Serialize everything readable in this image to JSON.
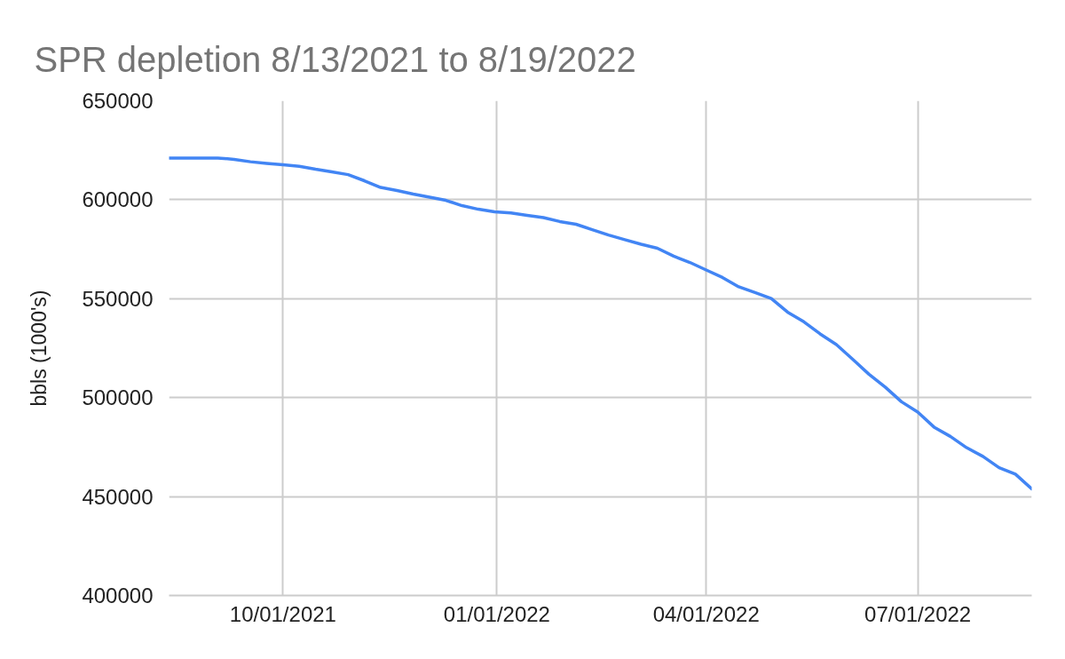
{
  "chart_data": {
    "type": "line",
    "title": "SPR depletion 8/13/2021 to 8/19/2022",
    "ylabel": "bbls (1000's)",
    "x": [
      "2021-08-13",
      "2021-08-20",
      "2021-08-27",
      "2021-09-03",
      "2021-09-10",
      "2021-09-17",
      "2021-09-24",
      "2021-10-01",
      "2021-10-08",
      "2021-10-15",
      "2021-10-22",
      "2021-10-29",
      "2021-11-05",
      "2021-11-12",
      "2021-11-19",
      "2021-11-26",
      "2021-12-03",
      "2021-12-10",
      "2021-12-17",
      "2021-12-24",
      "2021-12-31",
      "2022-01-07",
      "2022-01-14",
      "2022-01-21",
      "2022-01-28",
      "2022-02-04",
      "2022-02-11",
      "2022-02-18",
      "2022-02-25",
      "2022-03-04",
      "2022-03-11",
      "2022-03-18",
      "2022-03-25",
      "2022-04-01",
      "2022-04-08",
      "2022-04-15",
      "2022-04-22",
      "2022-04-29",
      "2022-05-06",
      "2022-05-13",
      "2022-05-20",
      "2022-05-27",
      "2022-06-03",
      "2022-06-10",
      "2022-06-17",
      "2022-06-24",
      "2022-07-01",
      "2022-07-08",
      "2022-07-15",
      "2022-07-22",
      "2022-07-29",
      "2022-08-05",
      "2022-08-12",
      "2022-08-19"
    ],
    "series": [
      {
        "color": "#4285f4",
        "values": [
          621100,
          621100,
          621100,
          621100,
          620400,
          619200,
          618400,
          617700,
          616900,
          615400,
          614100,
          612700,
          609600,
          606200,
          604700,
          602900,
          601300,
          599700,
          597000,
          595200,
          593900,
          593300,
          592100,
          591000,
          589000,
          587600,
          584900,
          582200,
          579800,
          577500,
          575500,
          571500,
          568300,
          564500,
          560700,
          556000,
          553100,
          550100,
          543200,
          538300,
          532200,
          526800,
          519400,
          511800,
          505300,
          497900,
          492700,
          485100,
          480400,
          474700,
          470300,
          464600,
          461300,
          453900
        ]
      }
    ],
    "xlim": [
      "2021-08-13",
      "2022-08-19"
    ],
    "xticks": [
      {
        "value": "2021-10-01",
        "label": "10/01/2021"
      },
      {
        "value": "2022-01-01",
        "label": "01/01/2022"
      },
      {
        "value": "2022-04-01",
        "label": "04/01/2022"
      },
      {
        "value": "2022-07-01",
        "label": "07/01/2022"
      }
    ],
    "ylim": [
      400000,
      650000
    ],
    "yticks": [
      400000,
      450000,
      500000,
      550000,
      600000,
      650000
    ],
    "grid": true
  }
}
